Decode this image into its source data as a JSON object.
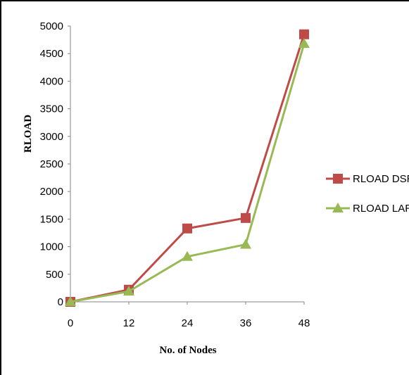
{
  "chart_data": {
    "type": "line",
    "xlabel": "No. of Nodes",
    "ylabel": "RLOAD",
    "x": [
      0,
      12,
      24,
      36,
      48
    ],
    "ylim": [
      0,
      5000
    ],
    "yticks": [
      0,
      500,
      1000,
      1500,
      2000,
      2500,
      3000,
      3500,
      4000,
      4500,
      5000
    ],
    "grid": false,
    "legend_position": "right",
    "series": [
      {
        "name": "RLOAD DSR",
        "values": [
          0,
          220,
          1330,
          1520,
          4850
        ],
        "color": "#be4b48",
        "marker": "square"
      },
      {
        "name": "RLOAD LAR",
        "values": [
          0,
          190,
          820,
          1040,
          4680
        ],
        "color": "#98b954",
        "marker": "triangle"
      }
    ]
  }
}
